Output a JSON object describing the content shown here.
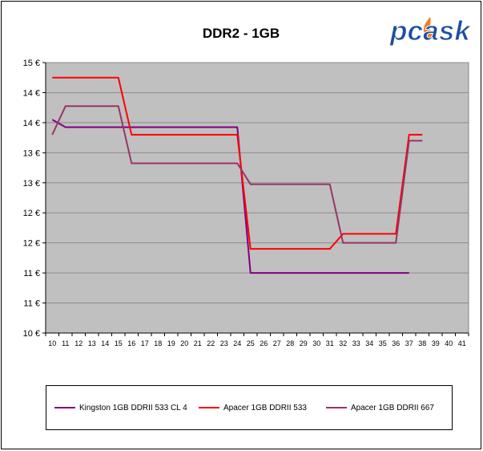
{
  "logo": {
    "text": "pcask",
    "fill_color": "#1e4f9e",
    "flame_color": "#f47a1f"
  },
  "colors": {
    "plot_background": "#c0c0c0",
    "grid": "#8c8c8c"
  },
  "chart_data": {
    "type": "line",
    "title": "DDR2 - 1GB",
    "xlabel": "",
    "ylabel": "",
    "ylim": [
      0,
      9
    ],
    "y_tick_labels": [
      "10 €",
      "11 €",
      "11 €",
      "12 €",
      "12 €",
      "13 €",
      "13 €",
      "14 €",
      "14 €",
      "15 €"
    ],
    "x": [
      "10",
      "11",
      "12",
      "13",
      "14",
      "15",
      "16",
      "17",
      "18",
      "19",
      "20",
      "21",
      "22",
      "23",
      "24",
      "25",
      "26",
      "27",
      "28",
      "29",
      "30",
      "31",
      "32",
      "33",
      "34",
      "35",
      "36",
      "37",
      "38",
      "39",
      "40",
      "41"
    ],
    "grid": "horizontal",
    "legend_position": "bottom",
    "series": [
      {
        "name": "Kingston 1GB DDRII 533 CL 4",
        "color": "#800080",
        "values": [
          7.1,
          6.85,
          6.85,
          6.85,
          6.85,
          6.85,
          6.85,
          6.85,
          6.85,
          6.85,
          6.85,
          6.85,
          6.85,
          6.85,
          6.85,
          2.0,
          2.0,
          2.0,
          2.0,
          2.0,
          2.0,
          2.0,
          2.0,
          2.0,
          2.0,
          2.0,
          2.0,
          2.0,
          null,
          null,
          null,
          null
        ]
      },
      {
        "name": "Apacer 1GB DDRII 533",
        "color": "#ff0000",
        "values": [
          8.5,
          8.5,
          8.5,
          8.5,
          8.5,
          8.5,
          6.6,
          6.6,
          6.6,
          6.6,
          6.6,
          6.6,
          6.6,
          6.6,
          6.6,
          2.8,
          2.8,
          2.8,
          2.8,
          2.8,
          2.8,
          2.8,
          3.3,
          3.3,
          3.3,
          3.3,
          3.3,
          6.6,
          6.6,
          null,
          null,
          null
        ]
      },
      {
        "name": "Apacer 1GB DDRII 667",
        "color": "#993366",
        "values": [
          6.6,
          7.55,
          7.55,
          7.55,
          7.55,
          7.55,
          5.65,
          5.65,
          5.65,
          5.65,
          5.65,
          5.65,
          5.65,
          5.65,
          5.65,
          4.95,
          4.95,
          4.95,
          4.95,
          4.95,
          4.95,
          4.95,
          3.0,
          3.0,
          3.0,
          3.0,
          3.0,
          6.4,
          6.4,
          null,
          null,
          null
        ]
      }
    ]
  }
}
